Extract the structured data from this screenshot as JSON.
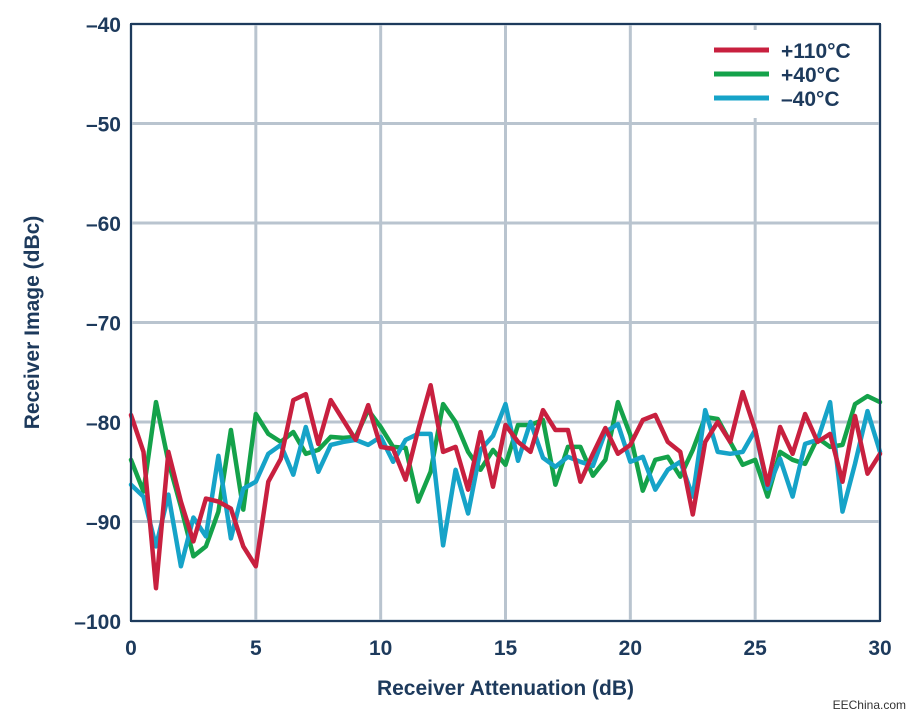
{
  "chart_data": {
    "type": "line",
    "title": "",
    "xlabel": "Receiver Attenuation (dB)",
    "ylabel": "Receiver Image (dBc)",
    "xlim": [
      0,
      30
    ],
    "ylim": [
      -100,
      -40
    ],
    "xticks": [
      0,
      5,
      10,
      15,
      20,
      25,
      30
    ],
    "yticks": [
      -100,
      -90,
      -80,
      -70,
      -60,
      -50,
      -40
    ],
    "xtick_labels": [
      "0",
      "5",
      "10",
      "15",
      "20",
      "25",
      "30"
    ],
    "ytick_labels": [
      "–100",
      "–90",
      "–80",
      "–70",
      "–60",
      "–50",
      "–40"
    ],
    "grid": true,
    "legend_position": "top-right",
    "series": [
      {
        "name": "+110°C",
        "color": "#c8203f",
        "x": [
          0,
          0.5,
          1,
          1.5,
          2,
          2.5,
          3,
          3.5,
          4,
          4.5,
          5,
          5.5,
          6,
          6.5,
          7,
          7.5,
          8,
          8.5,
          9,
          9.5,
          10,
          10.5,
          11,
          11.5,
          12,
          12.5,
          13,
          13.5,
          14,
          14.5,
          15,
          15.5,
          16,
          16.5,
          17,
          17.5,
          18,
          18.5,
          19,
          19.5,
          20,
          20.5,
          21,
          21.5,
          22,
          22.5,
          23,
          23.5,
          24,
          24.5,
          25,
          25.5,
          26,
          26.5,
          27,
          27.5,
          28,
          28.5,
          29,
          29.5,
          30
        ],
        "y": [
          -79.3,
          -83,
          -96.7,
          -83,
          -88,
          -92,
          -87.7,
          -88,
          -88.7,
          -92.5,
          -94.5,
          -86,
          -83.7,
          -77.8,
          -77.2,
          -82.2,
          -77.8,
          -79.8,
          -81.8,
          -78.3,
          -82.5,
          -82.7,
          -85.8,
          -80.8,
          -76.3,
          -83,
          -82.5,
          -86.8,
          -81,
          -86.5,
          -80.3,
          -82,
          -83,
          -78.8,
          -80.8,
          -80.8,
          -86,
          -83.2,
          -80.6,
          -83.2,
          -82.3,
          -79.8,
          -79.3,
          -82,
          -83,
          -89.3,
          -82,
          -80,
          -82,
          -77,
          -80.8,
          -86.3,
          -80.5,
          -83.2,
          -79.2,
          -82,
          -81.2,
          -86,
          -79.4,
          -85.2,
          -83.2
        ]
      },
      {
        "name": "+40°C",
        "color": "#14a24a",
        "x": [
          0,
          0.5,
          1,
          1.5,
          2,
          2.5,
          3,
          3.5,
          4,
          4.5,
          5,
          5.5,
          6,
          6.5,
          7,
          7.5,
          8,
          8.5,
          9,
          9.5,
          10,
          10.5,
          11,
          11.5,
          12,
          12.5,
          13,
          13.5,
          14,
          14.5,
          15,
          15.5,
          16,
          16.5,
          17,
          17.5,
          18,
          18.5,
          19,
          19.5,
          20,
          20.5,
          21,
          21.5,
          22,
          22.5,
          23,
          23.5,
          24,
          24.5,
          25,
          25.5,
          26,
          26.5,
          27,
          27.5,
          28,
          28.5,
          29,
          29.5,
          30
        ],
        "y": [
          -83.8,
          -87,
          -78,
          -84,
          -88.5,
          -93.5,
          -92.5,
          -89,
          -80.8,
          -88.8,
          -79.2,
          -81.2,
          -82,
          -81,
          -83.2,
          -82.8,
          -81.5,
          -81.6,
          -81.5,
          -78.8,
          -80.5,
          -82.5,
          -82.6,
          -88,
          -85,
          -78.2,
          -80,
          -83,
          -84.8,
          -82.8,
          -84.3,
          -80.3,
          -80.3,
          -79.8,
          -86.3,
          -82.5,
          -82.5,
          -85.4,
          -83.8,
          -78,
          -81.3,
          -86.9,
          -83.8,
          -83.5,
          -85.5,
          -82.8,
          -79.5,
          -79.7,
          -82,
          -84.3,
          -83.8,
          -87.5,
          -83,
          -83.8,
          -84.2,
          -81.6,
          -82.5,
          -82.3,
          -78.2,
          -77.4,
          -78
        ]
      },
      {
        "name": "–40°C",
        "color": "#16a3c8",
        "x": [
          0,
          0.5,
          1,
          1.5,
          2,
          2.5,
          3,
          3.5,
          4,
          4.5,
          5,
          5.5,
          6,
          6.5,
          7,
          7.5,
          8,
          8.5,
          9,
          9.5,
          10,
          10.5,
          11,
          11.5,
          12,
          12.5,
          13,
          13.5,
          14,
          14.5,
          15,
          15.5,
          16,
          16.5,
          17,
          17.5,
          18,
          18.5,
          19,
          19.5,
          20,
          20.5,
          21,
          21.5,
          22,
          22.5,
          23,
          23.5,
          24,
          24.5,
          25,
          25.5,
          26,
          26.5,
          27,
          27.5,
          28,
          28.5,
          29,
          29.5,
          30
        ],
        "y": [
          -86.3,
          -87.5,
          -92.5,
          -87.3,
          -94.5,
          -89.6,
          -91.5,
          -83.4,
          -91.7,
          -86.7,
          -86,
          -83.2,
          -82.3,
          -85.3,
          -80.5,
          -85,
          -82.3,
          -82,
          -81.8,
          -82.3,
          -81.5,
          -84,
          -81.8,
          -81.2,
          -81.2,
          -92.4,
          -84.8,
          -89.2,
          -82.8,
          -81.4,
          -78.2,
          -83.9,
          -80,
          -83.6,
          -84.5,
          -83.5,
          -84,
          -84.4,
          -81,
          -80.2,
          -84,
          -83.5,
          -86.8,
          -84.8,
          -84,
          -87.5,
          -78.8,
          -83,
          -83.2,
          -83,
          -80.8,
          -86.7,
          -83.7,
          -87.5,
          -82.2,
          -81.8,
          -78,
          -89,
          -84.2,
          -78.9,
          -83
        ]
      }
    ]
  },
  "watermark": "EEChina.com"
}
